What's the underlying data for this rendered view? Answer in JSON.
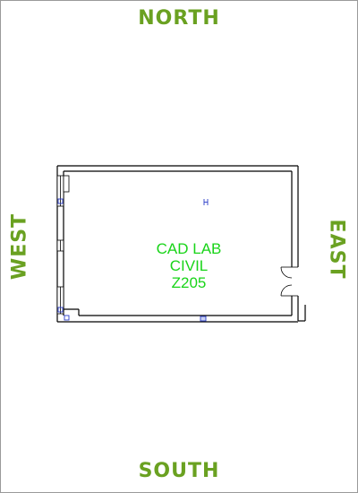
{
  "compass": {
    "north": "NORTH",
    "south": "SOUTH",
    "east": "EAST",
    "west": "WEST"
  },
  "room": {
    "name": "CAD LAB",
    "department": "CIVIL",
    "number": "Z205"
  },
  "colors": {
    "compass_text": "#6aa121",
    "room_label": "#18d418",
    "wall": "#000000",
    "fixture_marker": "#2a3cc8"
  }
}
